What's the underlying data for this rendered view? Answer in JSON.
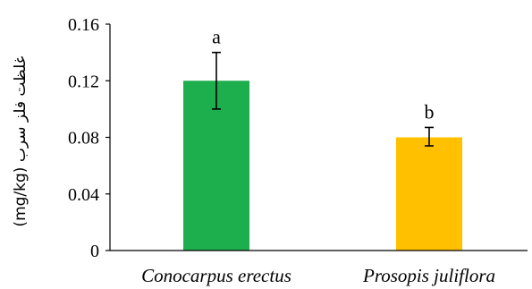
{
  "chart_data": {
    "type": "bar",
    "categories": [
      "Conocarpus erectus",
      "Prosopis juliflora"
    ],
    "values": [
      0.12,
      0.08
    ],
    "error_low": [
      0.1,
      0.074
    ],
    "error_high": [
      0.14,
      0.087
    ],
    "significance_letters": [
      "a",
      "b"
    ],
    "colors": [
      "#1DAE4D",
      "#FFC000"
    ],
    "ylabel": "(mg/kg) غلظت فلز سرب",
    "ylim": [
      0,
      0.16
    ],
    "yticks": [
      0,
      0.04,
      0.08,
      0.12,
      0.16
    ],
    "ytick_labels": [
      "0",
      "0.04",
      "0.08",
      "0.12",
      "0.16"
    ],
    "grid": false,
    "legend": false
  }
}
